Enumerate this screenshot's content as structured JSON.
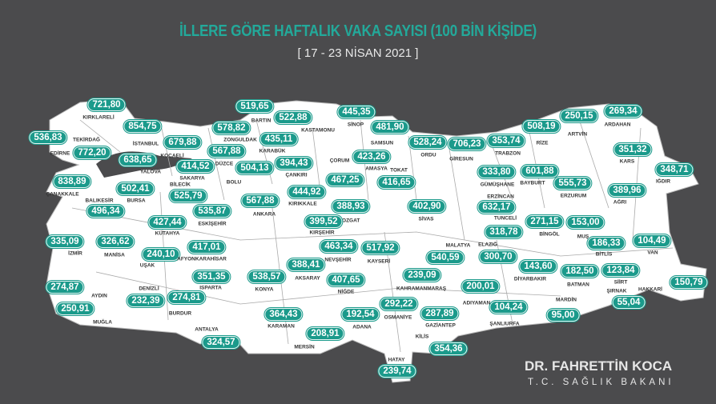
{
  "title": "İLLERE GÖRE HAFTALIK VAKA SAYISI (100 BİN KİŞİDE)",
  "date_range": "[ 17 - 23 NİSAN 2021 ]",
  "signature": {
    "name": "DR. FAHRETTİN KOCA",
    "position": "T.C. SAĞLIK BAKANI"
  },
  "colors": {
    "background": "#4b4b4d",
    "land": "#ffffff",
    "pill": "#1b9a8b",
    "title": "#23a99a"
  },
  "provinces": [
    {
      "name": "KIRKLARELİ",
      "value": "721,80"
    },
    {
      "name": "EDİRNE",
      "value": "536,83"
    },
    {
      "name": "TEKİRDAĞ",
      "value": "772,20"
    },
    {
      "name": "İSTANBUL",
      "value": "854,75"
    },
    {
      "name": "KOCAELİ",
      "value": "679,88"
    },
    {
      "name": "YALOVA",
      "value": "638,65"
    },
    {
      "name": "SAKARYA",
      "value": "414,52"
    },
    {
      "name": "DÜZCE",
      "value": "567,88"
    },
    {
      "name": "ZONGULDAK",
      "value": "578,82"
    },
    {
      "name": "BARTIN",
      "value": "519,65"
    },
    {
      "name": "KARABÜK",
      "value": "435,11"
    },
    {
      "name": "KASTAMONU",
      "value": "522,88"
    },
    {
      "name": "SİNOP",
      "value": "445,35"
    },
    {
      "name": "SAMSUN",
      "value": "481,90"
    },
    {
      "name": "ORDU",
      "value": "528,24"
    },
    {
      "name": "BOLU",
      "value": "504,13"
    },
    {
      "name": "ÇANKIRI",
      "value": "394,43"
    },
    {
      "name": "ÇORUM",
      "value": "467,25"
    },
    {
      "name": "AMASYA",
      "value": "423,26"
    },
    {
      "name": "TOKAT",
      "value": "416,65"
    },
    {
      "name": "KIRIKKALE",
      "value": "444,92"
    },
    {
      "name": "ANKARA",
      "value": "567,88"
    },
    {
      "name": "YOZGAT",
      "value": "388,93"
    },
    {
      "name": "KIRŞEHİR",
      "value": "399,52"
    },
    {
      "name": "SİVAS",
      "value": "402,90"
    },
    {
      "name": "ESKİŞEHİR",
      "value": "535,87"
    },
    {
      "name": "BİLECİK",
      "value": "525,79"
    },
    {
      "name": "BURSA",
      "value": "502,41"
    },
    {
      "name": "BALIKESİR",
      "value": "496,34"
    },
    {
      "name": "ÇANAKKALE",
      "value": "838,89"
    },
    {
      "name": "KÜTAHYA",
      "value": "427,44"
    },
    {
      "name": "İZMİR",
      "value": "335,09"
    },
    {
      "name": "MANİSA",
      "value": "326,62"
    },
    {
      "name": "UŞAK",
      "value": "240,10"
    },
    {
      "name": "AFYONKARAHİSAR",
      "value": "417,01"
    },
    {
      "name": "AYDIN",
      "value": "274,87"
    },
    {
      "name": "DENİZLİ",
      "value": "232,39"
    },
    {
      "name": "ISPARTA",
      "value": "351,35"
    },
    {
      "name": "BURDUR",
      "value": "274,81"
    },
    {
      "name": "MUĞLA",
      "value": "250,91"
    },
    {
      "name": "ANTALYA",
      "value": "324,57"
    },
    {
      "name": "KONYA",
      "value": "538,57"
    },
    {
      "name": "AKSARAY",
      "value": "388,41"
    },
    {
      "name": "NEVŞEHİR",
      "value": "463,34"
    },
    {
      "name": "KAYSERİ",
      "value": "517,92"
    },
    {
      "name": "NİĞDE",
      "value": "407,65"
    },
    {
      "name": "KARAMAN",
      "value": "364,43"
    },
    {
      "name": "MERSİN",
      "value": "208,91"
    },
    {
      "name": "ADANA",
      "value": "192,54"
    },
    {
      "name": "OSMANİYE",
      "value": "292,22"
    },
    {
      "name": "HATAY",
      "value": "239,74"
    },
    {
      "name": "KAHRAMANMARAŞ",
      "value": "239,09"
    },
    {
      "name": "GAZİANTEP",
      "value": "287,89"
    },
    {
      "name": "KİLİS",
      "value": "354,36"
    },
    {
      "name": "MALATYA",
      "value": "540,59"
    },
    {
      "name": "ADIYAMAN",
      "value": "200,01"
    },
    {
      "name": "ŞANLIURFA",
      "value": "104,24"
    },
    {
      "name": "ELAZIĞ",
      "value": "300,70"
    },
    {
      "name": "DİYARBAKIR",
      "value": "143,60"
    },
    {
      "name": "BATMAN",
      "value": "182,50"
    },
    {
      "name": "MARDİN",
      "value": "95,00"
    },
    {
      "name": "ŞIRNAK",
      "value": "55,04"
    },
    {
      "name": "SİİRT",
      "value": "123,84"
    },
    {
      "name": "HAKKARİ",
      "value": "150,79"
    },
    {
      "name": "VAN",
      "value": "104,49"
    },
    {
      "name": "BİTLİS",
      "value": "186,33"
    },
    {
      "name": "MUŞ",
      "value": "153,00"
    },
    {
      "name": "BİNGÖL",
      "value": "271,15"
    },
    {
      "name": "TUNCELİ",
      "value": "318,78"
    },
    {
      "name": "ERZİNCAN",
      "value": "632,17"
    },
    {
      "name": "ERZURUM",
      "value": "555,73"
    },
    {
      "name": "AĞRI",
      "value": "389,96"
    },
    {
      "name": "IĞDIR",
      "value": "348,71"
    },
    {
      "name": "KARS",
      "value": "351,32"
    },
    {
      "name": "ARDAHAN",
      "value": "269,34"
    },
    {
      "name": "ARTVİN",
      "value": "250,15"
    },
    {
      "name": "RİZE",
      "value": "508,19"
    },
    {
      "name": "TRABZON",
      "value": "353,74"
    },
    {
      "name": "GİRESUN",
      "value": "706,23"
    },
    {
      "name": "GÜMÜŞHANE",
      "value": "333,80"
    },
    {
      "name": "BAYBURT",
      "value": "601,88"
    }
  ]
}
